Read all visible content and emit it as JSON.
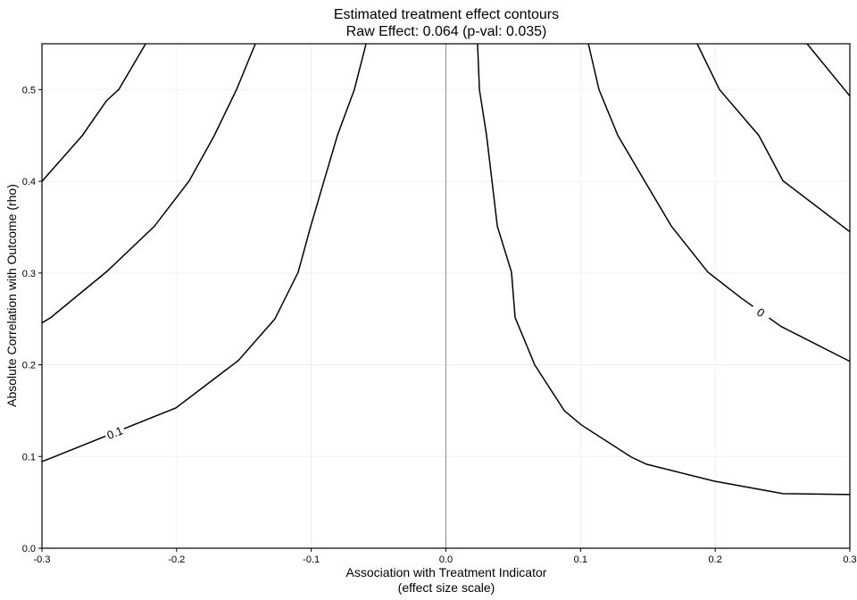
{
  "chart_data": {
    "type": "line",
    "title": "Estimated treatment effect contours",
    "subtitle": "Raw Effect: 0.064 (p-val: 0.035)",
    "x_label": "Association with Treatment Indicator",
    "x_sublabel": "(effect size scale)",
    "y_label": "Absolute Correlation with Outcome (rho)",
    "xlim": [
      -0.3,
      0.3
    ],
    "ylim": [
      0,
      0.55
    ],
    "xticks": [
      -0.3,
      -0.2,
      -0.1,
      {
        "value": 0,
        "label": "0.0"
      },
      0.1,
      0.2,
      0.3
    ],
    "yticks": [
      {
        "value": 0,
        "label": "0.0"
      },
      0.1,
      0.2,
      0.3,
      0.4,
      0.5
    ],
    "grid": true,
    "vline": 0,
    "vline_color": "#999999",
    "series": [
      {
        "color": "#000000",
        "x": [
          -0.3,
          -0.27,
          -0.252,
          -0.243,
          -0.223
        ],
        "values": [
          0.4,
          0.45,
          0.488,
          0.5,
          0.55
        ]
      },
      {
        "color": "#000000",
        "x": [
          -0.3,
          -0.2934,
          -0.2516,
          -0.2165,
          -0.1906,
          -0.172,
          -0.1555,
          -0.1415
        ],
        "values": [
          0.2456,
          0.2515,
          0.302,
          0.351,
          0.4006,
          0.45,
          0.5,
          0.55
        ]
      },
      {
        "color": "#000000",
        "label": "0.1",
        "x": [
          -0.3,
          -0.2914,
          -0.2005,
          -0.1541,
          -0.127,
          -0.1097,
          -0.1004,
          -0.0905,
          -0.0806,
          -0.068,
          -0.0593
        ],
        "values": [
          0.0945,
          0.0994,
          0.153,
          0.2047,
          0.25,
          0.301,
          0.351,
          0.4006,
          0.45,
          0.5,
          0.55
        ]
      },
      {
        "color": "#000000",
        "x": [
          0.0235,
          0.0249,
          0.0302,
          0.0342,
          0.0382,
          0.0487,
          0.0514,
          0.066,
          0.0879,
          0.1005,
          0.1376,
          0.1489,
          0.1993,
          0.2503,
          0.3
        ],
        "values": [
          0.55,
          0.5,
          0.45,
          0.4006,
          0.351,
          0.301,
          0.2515,
          0.1998,
          0.15,
          0.1345,
          0.0994,
          0.0916,
          0.0731,
          0.0595,
          0.0585
        ]
      },
      {
        "color": "#000000",
        "label": "0",
        "x": [
          0.1058,
          0.1137,
          0.1277,
          0.1475,
          0.1675,
          0.1946,
          0.2191,
          0.249,
          0.3
        ],
        "values": [
          0.55,
          0.5,
          0.45,
          0.4006,
          0.351,
          0.301,
          0.273,
          0.2417,
          0.2037
        ]
      },
      {
        "color": "#000000",
        "x": [
          0.1866,
          0.2032,
          0.2324,
          0.2503,
          0.3
        ],
        "values": [
          0.55,
          0.5,
          0.45,
          0.4006,
          0.345
        ]
      },
      {
        "color": "#000000",
        "x": [
          0.2682,
          0.3
        ],
        "values": [
          0.55,
          0.493
        ]
      }
    ]
  }
}
